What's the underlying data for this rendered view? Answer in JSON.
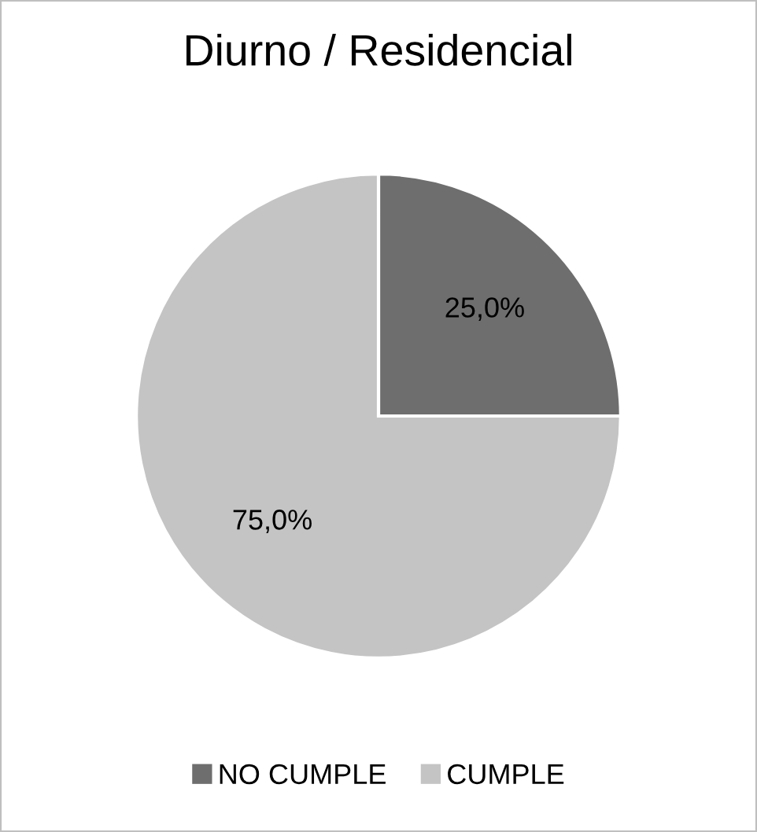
{
  "chart_data": {
    "type": "pie",
    "title": "Diurno / Residencial",
    "categories": [
      "NO CUMPLE",
      "CUMPLE"
    ],
    "values": [
      25,
      75
    ],
    "colors": [
      "#6e6e6e",
      "#c4c4c4"
    ],
    "value_labels": [
      "25,0%",
      "75,0%"
    ],
    "legend": "bottom"
  }
}
